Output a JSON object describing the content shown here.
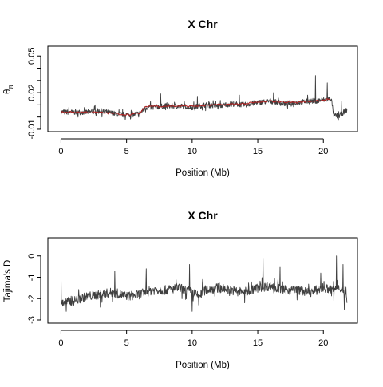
{
  "chart_data": [
    {
      "type": "line",
      "title": "X Chr",
      "xlabel": "Position (Mb)",
      "ylabel_main": "θ",
      "ylabel_sub": "π",
      "xlim": [
        -1,
        22.6
      ],
      "ylim": [
        -0.012,
        0.058
      ],
      "xticks": [
        0,
        5,
        10,
        15,
        20
      ],
      "xtick_labels": [
        "0",
        "5",
        "10",
        "15",
        "20"
      ],
      "yticks": [
        -0.01,
        0.02,
        0.05
      ],
      "ytick_labels": [
        "-0.01",
        "0.02",
        "0.05"
      ],
      "minor_yticks": [
        0.0,
        0.01,
        0.03,
        0.04
      ],
      "series": [
        {
          "color": "#404040",
          "x": [
            0,
            1,
            2,
            3,
            4,
            4.5,
            5,
            5.5,
            6,
            6.5,
            7,
            8,
            9,
            10,
            11,
            12,
            13,
            14,
            15,
            16,
            17,
            18,
            19,
            20,
            20.6,
            20.8,
            21.2,
            21.8
          ],
          "y": [
            0.004,
            0.004,
            0.004,
            0.005,
            0.003,
            0.002,
            0.002,
            0.002,
            0.003,
            0.008,
            0.008,
            0.009,
            0.009,
            0.008,
            0.01,
            0.009,
            0.011,
            0.01,
            0.012,
            0.013,
            0.011,
            0.012,
            0.013,
            0.014,
            0.015,
            0.001,
            0.001,
            0.006
          ],
          "peaks": [
            [
              19.4,
              0.034
            ],
            [
              20.3,
              0.028
            ],
            [
              7.6,
              0.019
            ],
            [
              16.2,
              0.02
            ],
            [
              18.8,
              0.018
            ],
            [
              10.4,
              0.017
            ],
            [
              2.6,
              0.01
            ],
            [
              13.6,
              0.018
            ],
            [
              21.4,
              0.013
            ]
          ]
        },
        {
          "color": "#b22222",
          "x": [
            0,
            2,
            4,
            5,
            6,
            6.5,
            8,
            10,
            12,
            14,
            16,
            18,
            20,
            20.6
          ],
          "y": [
            0.004,
            0.004,
            0.003,
            0.002,
            0.003,
            0.009,
            0.009,
            0.009,
            0.01,
            0.011,
            0.013,
            0.012,
            0.014,
            0.015
          ]
        }
      ]
    },
    {
      "type": "line",
      "title": "X Chr",
      "xlabel": "Position (Mb)",
      "ylabel": "Tajima's D",
      "xlim": [
        -1,
        22.6
      ],
      "ylim": [
        -3.15,
        0.85
      ],
      "xticks": [
        0,
        5,
        10,
        15,
        20
      ],
      "xtick_labels": [
        "0",
        "5",
        "10",
        "15",
        "20"
      ],
      "yticks": [
        -3,
        -2,
        -1,
        0
      ],
      "ytick_labels": [
        "-3",
        "-2",
        "-1",
        "0"
      ],
      "series": [
        {
          "color": "#404040",
          "x": [
            0,
            1,
            2,
            3,
            4,
            5,
            6,
            7,
            8,
            9,
            10,
            10.5,
            11,
            12,
            13,
            14,
            15,
            16,
            17,
            18,
            19,
            20,
            20.8,
            21.2,
            21.8
          ],
          "y": [
            -2.2,
            -2.1,
            -1.9,
            -1.8,
            -1.7,
            -1.9,
            -1.8,
            -1.6,
            -1.6,
            -1.5,
            -1.7,
            -1.9,
            -1.6,
            -1.5,
            -1.6,
            -1.7,
            -1.5,
            -1.4,
            -1.6,
            -1.6,
            -1.7,
            -1.5,
            -1.6,
            -1.4,
            -2.0
          ],
          "peaks": [
            [
              0,
              -0.8
            ],
            [
              4.1,
              -0.7
            ],
            [
              6.5,
              -0.6
            ],
            [
              9.8,
              -0.4
            ],
            [
              10.8,
              -1.1
            ],
            [
              15.4,
              -0.1
            ],
            [
              16.7,
              -0.5
            ],
            [
              19.8,
              -0.8
            ],
            [
              21.0,
              0.0
            ],
            [
              21.5,
              -0.4
            ]
          ],
          "troughs": [
            [
              0.4,
              -2.6
            ],
            [
              3.0,
              -2.4
            ],
            [
              10.0,
              -2.6
            ],
            [
              10.5,
              -2.3
            ],
            [
              14.0,
              -2.2
            ],
            [
              20.8,
              -2.1
            ],
            [
              21.6,
              -2.5
            ]
          ]
        }
      ]
    }
  ]
}
